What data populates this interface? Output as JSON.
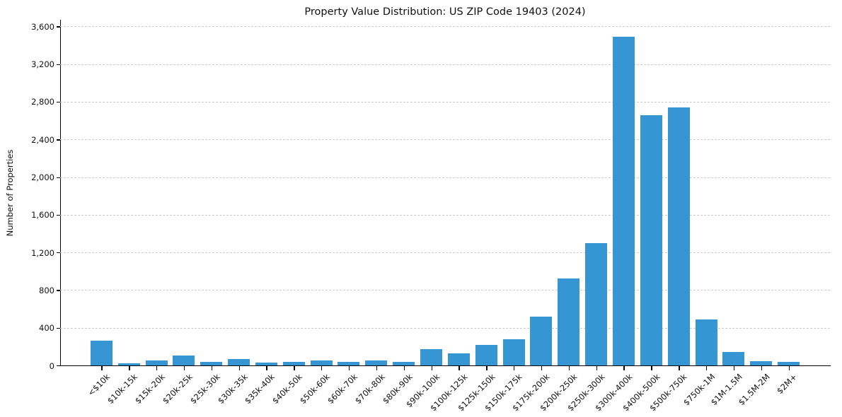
{
  "title": "Property Value Distribution: US ZIP Code 19403 (2024)",
  "chart_data": {
    "type": "bar",
    "title": "Property Value Distribution: US ZIP Code 19403 (2024)",
    "xlabel": "",
    "ylabel": "Number of Properties",
    "legend": null,
    "grid": "horizontal-dashed",
    "bar_color": "#3696d3",
    "grid_color": "#cccccc",
    "axis_color": "#000000",
    "text_color": "#111111",
    "ylim": [
      0,
      3670
    ],
    "y_ticks": [
      0,
      400,
      800,
      1200,
      1600,
      2000,
      2400,
      2800,
      3200,
      3600
    ],
    "y_tick_labels": [
      "0",
      "400",
      "800",
      "1,200",
      "1,600",
      "2,000",
      "2,400",
      "2,800",
      "3,200",
      "3,600"
    ],
    "categories": [
      "<$10k",
      "$10k-15k",
      "$15k-20k",
      "$20k-25k",
      "$25k-30k",
      "$30k-35k",
      "$35k-40k",
      "$40k-50k",
      "$50k-60k",
      "$60k-70k",
      "$70k-80k",
      "$80k-90k",
      "$90k-100k",
      "$100k-125k",
      "$125k-150k",
      "$150k-175k",
      "$175k-200k",
      "$200k-250k",
      "$250k-300k",
      "$300k-400k",
      "$400k-500k",
      "$500k-750k",
      "$750k-1M",
      "$1M-1.5M",
      "$1.5M-2M",
      "$2M+"
    ],
    "values": [
      265,
      20,
      55,
      105,
      35,
      65,
      30,
      40,
      55,
      40,
      50,
      40,
      170,
      130,
      220,
      275,
      515,
      920,
      1300,
      3490,
      2660,
      2740,
      490,
      140,
      45,
      40
    ]
  }
}
